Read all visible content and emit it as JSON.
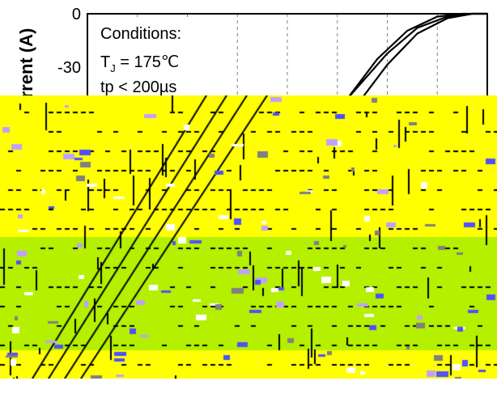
{
  "chart_data": {
    "type": "line",
    "title": "",
    "ylabel": "Current (A)",
    "ylabel_visible": "rrent (A)",
    "xlabel": "",
    "y_ticks": [
      "0",
      "-30"
    ],
    "ylim": [
      -60,
      0
    ],
    "xlim": [
      -8,
      0
    ],
    "grid": true,
    "annotation": {
      "line1": "Conditions:",
      "line2_main": "T",
      "line2_sub": "J",
      "line2_rest": " = 175℃",
      "line3": "tp < 200µs"
    },
    "series": [
      {
        "x": [
          -6.0,
          -5.0,
          -4.3,
          -3.8,
          -3.3,
          -2.8,
          -2.2,
          -1.6,
          -1.0,
          -0.5,
          0.0
        ],
        "values": [
          -60,
          -45,
          -35,
          -29,
          -23,
          -15,
          -8,
          -3,
          -0.5,
          0,
          0
        ]
      },
      {
        "x": [
          -6.5,
          -5.4,
          -4.6,
          -3.9,
          -3.3,
          -2.7,
          -2.0,
          -1.4,
          -0.8,
          -0.3,
          0.0
        ],
        "values": [
          -60,
          -44,
          -34,
          -27,
          -21,
          -14,
          -7,
          -2.5,
          -0.5,
          0,
          0
        ]
      },
      {
        "x": [
          -5.2,
          -4.6,
          -4.0,
          -3.6,
          -3.1,
          -2.6,
          -2.0,
          -1.4,
          -0.8,
          -0.3,
          0.0
        ],
        "values": [
          -60,
          -48,
          -38,
          -31,
          -24,
          -16,
          -9,
          -3.5,
          -0.8,
          0,
          0
        ]
      }
    ]
  },
  "colors": {
    "noise_primary": "#ffff00",
    "noise_secondary": "#b4f000",
    "noise_dark": "#000000"
  }
}
